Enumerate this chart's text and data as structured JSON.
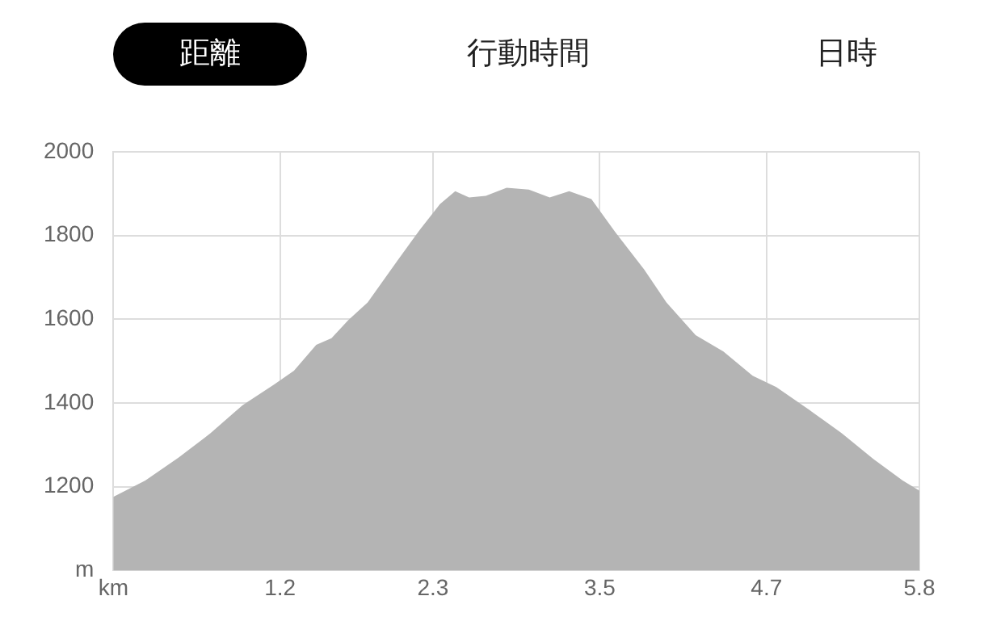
{
  "chart_data": {
    "type": "area",
    "annotations": [
      "距離",
      "行動時間",
      "日時"
    ],
    "x": [
      0,
      0.23,
      0.47,
      0.7,
      0.93,
      1.16,
      1.3,
      1.46,
      1.57,
      1.69,
      1.83,
      2.04,
      2.21,
      2.35,
      2.46,
      2.56,
      2.68,
      2.83,
      2.99,
      3.14,
      3.28,
      3.44,
      3.61,
      3.82,
      3.98,
      4.19,
      4.39,
      4.6,
      4.77,
      5.01,
      5.24,
      5.47,
      5.68,
      5.8
    ],
    "values": [
      1176,
      1215,
      1270,
      1328,
      1395,
      1445,
      1477,
      1539,
      1555,
      1598,
      1640,
      1738,
      1816,
      1875,
      1906,
      1891,
      1895,
      1914,
      1910,
      1891,
      1906,
      1887,
      1809,
      1719,
      1640,
      1562,
      1523,
      1465,
      1438,
      1383,
      1328,
      1266,
      1215,
      1191
    ],
    "color": "#b4b4b4",
    "xlim": [
      0,
      5.8
    ],
    "xticks": [
      {
        "value": 0,
        "label": "km"
      },
      1.2,
      2.3,
      3.5,
      4.7,
      5.8
    ],
    "ylim": [
      1000,
      2000
    ],
    "yticks": [
      {
        "value": 1000,
        "label": "m"
      },
      1200,
      1400,
      1600,
      1800,
      2000
    ],
    "grid": true,
    "legend": false
  }
}
